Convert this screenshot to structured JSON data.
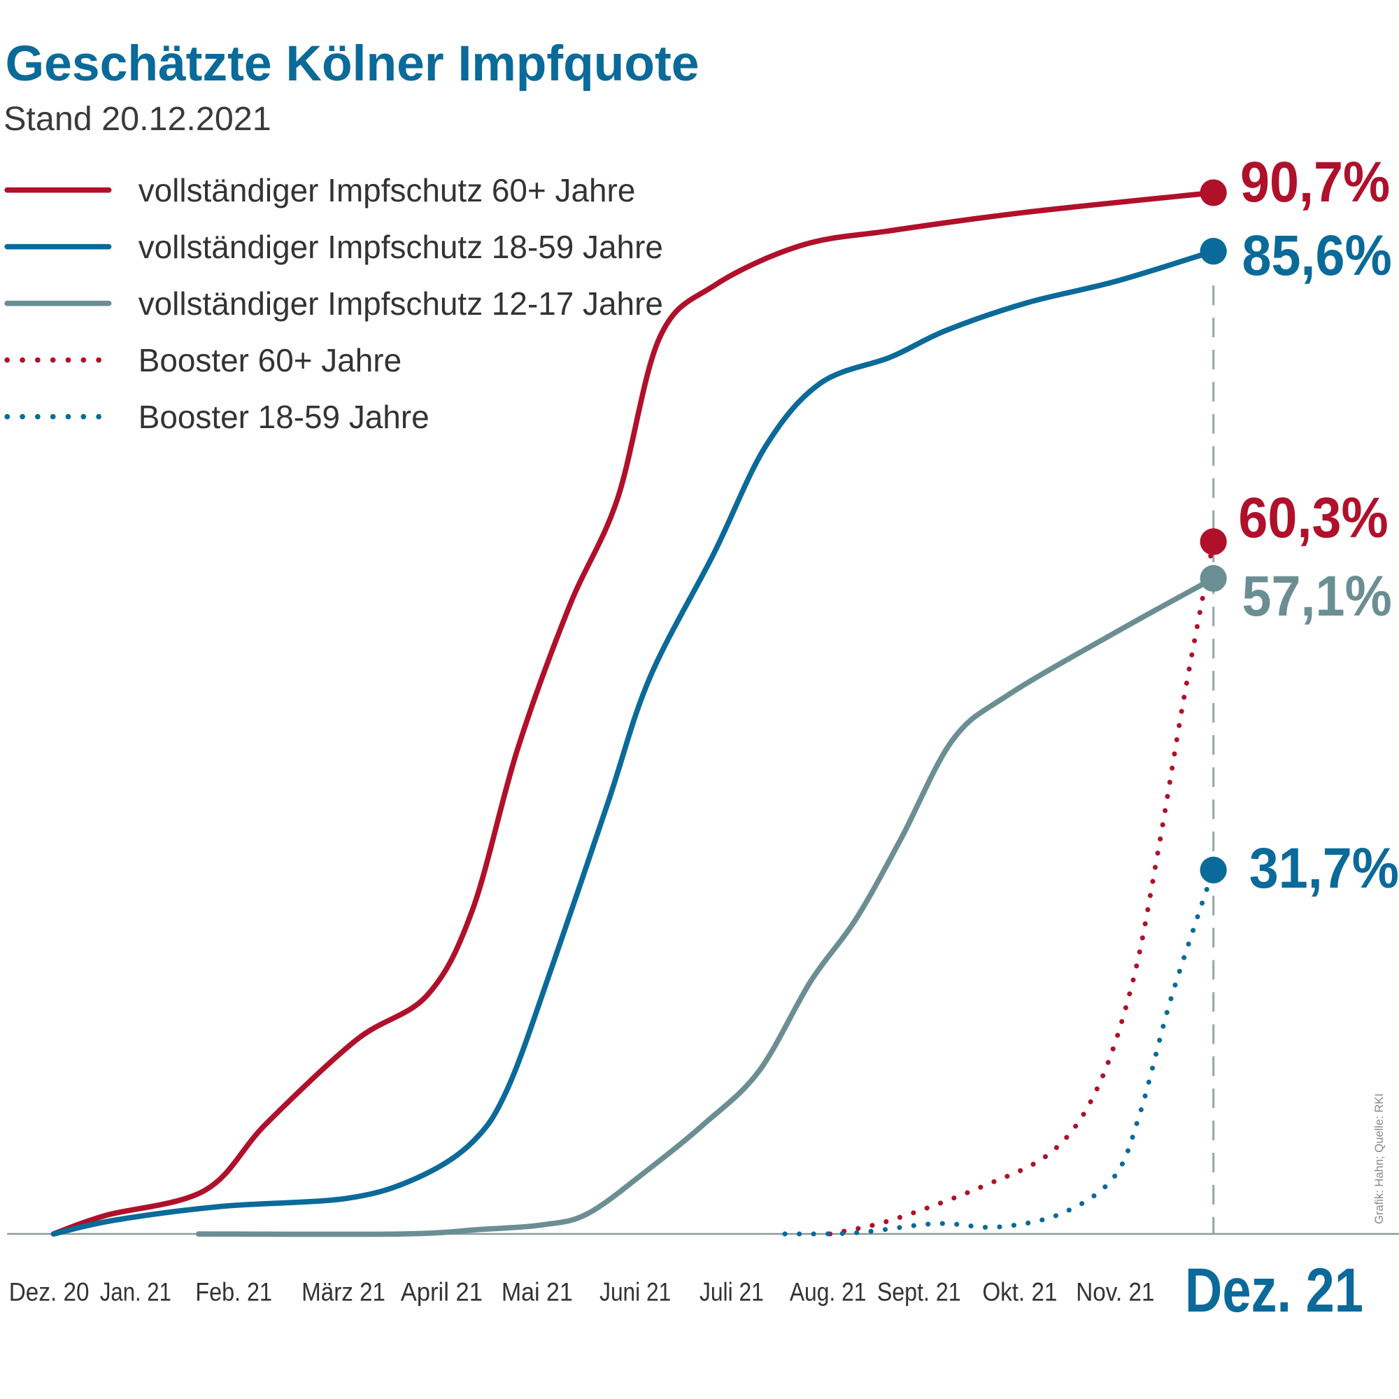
{
  "chart_data": {
    "type": "line",
    "title": "Geschätzte Kölner Impfquote",
    "subtitle": "Stand 20.12.2021",
    "xlabel": "",
    "ylabel": "",
    "ylim": [
      0,
      100
    ],
    "grid": false,
    "legend_position": "top-left",
    "x_ticks": [
      "Dez. 20",
      "Jan. 21",
      "Feb. 21",
      "März 21",
      "April 21",
      "Mai 21",
      "Juni 21",
      "Juli 21",
      "Aug. 21",
      "Sept. 21",
      "Okt. 21",
      "Nov. 21",
      "Dez. 21"
    ],
    "credit": "Grafik: Hahn; Quelle: RKI",
    "series": [
      {
        "name": "vollständiger Impfschutz 60+ Jahre",
        "color": "#b0102a",
        "style": "solid",
        "end_label": "90,7%",
        "x": [
          "2020-12-01",
          "2020-12-17",
          "2021-01-18",
          "2021-02-07",
          "2021-03-05",
          "2021-03-27",
          "2021-04-11",
          "2021-04-25",
          "2021-05-11",
          "2021-05-26",
          "2021-06-09",
          "2021-06-26",
          "2021-07-23",
          "2021-08-21",
          "2021-10-03",
          "2021-12-01"
        ],
        "y": [
          0,
          1.6,
          3.8,
          9.6,
          16.9,
          20.8,
          28.2,
          42.2,
          54.6,
          64.0,
          78.0,
          82.6,
          86.1,
          87.4,
          89.0,
          90.7
        ]
      },
      {
        "name": "vollständiger Impfschutz 18-59 Jahre",
        "color": "#0a6a99",
        "style": "solid",
        "end_label": "85,6%",
        "x": [
          "2020-12-01",
          "2020-12-20",
          "2021-01-23",
          "2021-03-02",
          "2021-03-24",
          "2021-04-11",
          "2021-04-22",
          "2021-05-06",
          "2021-05-23",
          "2021-06-06",
          "2021-06-26",
          "2021-07-12",
          "2021-07-29",
          "2021-08-21",
          "2021-09-08",
          "2021-10-03",
          "2021-10-31",
          "2021-12-01"
        ],
        "y": [
          0,
          1.2,
          2.4,
          3.1,
          4.9,
          8.0,
          12.7,
          23.5,
          37.5,
          48.4,
          59.3,
          68.6,
          74.1,
          76.4,
          78.7,
          81.1,
          83.0,
          85.6
        ]
      },
      {
        "name": "vollständiger Impfschutz 12-17 Jahre",
        "color": "#6b8e93",
        "style": "solid",
        "end_label": "57,1%",
        "x": [
          "2021-01-16",
          "2021-03-19",
          "2021-04-14",
          "2021-05-03",
          "2021-05-17",
          "2021-06-06",
          "2021-06-23",
          "2021-07-10",
          "2021-07-26",
          "2021-08-10",
          "2021-08-24",
          "2021-09-10",
          "2021-09-27",
          "2021-10-30",
          "2021-12-01"
        ],
        "y": [
          0,
          0,
          0.4,
          0.8,
          1.8,
          5.7,
          9.6,
          14.2,
          22.0,
          27.4,
          34.4,
          43.0,
          46.9,
          52.3,
          57.1
        ]
      },
      {
        "name": "Booster 60+ Jahre",
        "color": "#b0102a",
        "style": "dotted",
        "end_label": "60,3%",
        "x": [
          "2021-08-02",
          "2021-08-21",
          "2021-09-19",
          "2021-10-11",
          "2021-10-25",
          "2021-11-06",
          "2021-11-14",
          "2021-11-22",
          "2021-12-01"
        ],
        "y": [
          0,
          1.2,
          4.1,
          7.2,
          12.7,
          22.0,
          33.6,
          46.9,
          60.3
        ]
      },
      {
        "name": "Booster 18-59 Jahre",
        "color": "#0a6a99",
        "style": "dotted",
        "end_label": "31,7%",
        "x": [
          "2021-07-18",
          "2021-08-10",
          "2021-09-05",
          "2021-09-24",
          "2021-10-14",
          "2021-10-30",
          "2021-11-08",
          "2021-11-17",
          "2021-11-25",
          "2021-12-01"
        ],
        "y": [
          0,
          0.1,
          0.9,
          0.6,
          1.8,
          4.9,
          10.3,
          19.7,
          26.7,
          31.7
        ]
      }
    ]
  }
}
